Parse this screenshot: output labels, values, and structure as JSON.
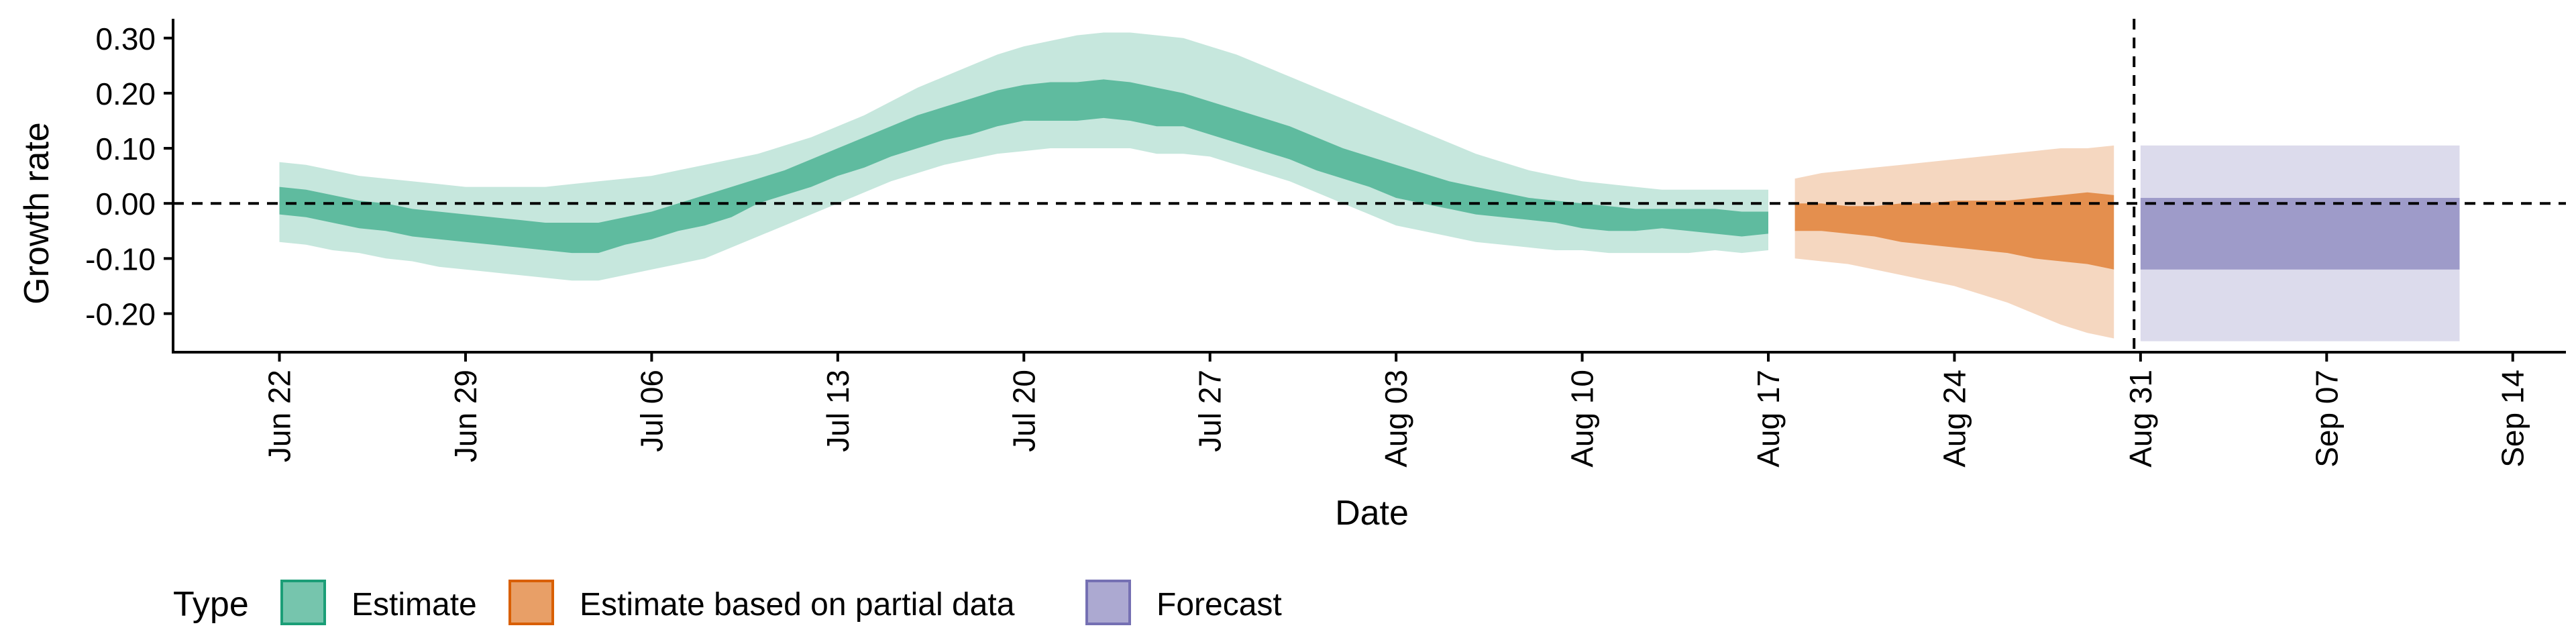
{
  "chart_data": {
    "type": "area",
    "xlabel": "Date",
    "ylabel": "Growth rate",
    "ylim": [
      -0.27,
      0.335
    ],
    "x_ticks": [
      "2020-06-22",
      "2020-06-29",
      "2020-07-06",
      "2020-07-13",
      "2020-07-20",
      "2020-07-27",
      "2020-08-03",
      "2020-08-10",
      "2020-08-17",
      "2020-08-24",
      "2020-08-31",
      "2020-09-07",
      "2020-09-14"
    ],
    "x_tick_labels": [
      "Jun 22",
      "Jun 29",
      "Jul 06",
      "Jul 13",
      "Jul 20",
      "Jul 27",
      "Aug 03",
      "Aug 10",
      "Aug 17",
      "Aug 24",
      "Aug 31",
      "Sep 07",
      "Sep 14"
    ],
    "xlim": [
      "2020-06-18",
      "2020-09-16"
    ],
    "y_ticks": [
      -0.2,
      -0.1,
      0.0,
      0.1,
      0.2,
      0.3
    ],
    "y_tick_labels": [
      "-0.20",
      "-0.10",
      "0.00",
      "0.10",
      "0.20",
      "0.30"
    ],
    "grid": false,
    "hlines": [
      0
    ],
    "vlines": [
      "2020-08-30"
    ],
    "legend": {
      "title": "Type",
      "position": "bottom",
      "entries": [
        "Estimate",
        "Estimate based on partial data",
        "Forecast"
      ]
    },
    "colors": {
      "Estimate": "#1b9e77",
      "Estimate based on partial data": "#d95f02",
      "Forecast": "#7570b3"
    },
    "series": [
      {
        "name": "Estimate",
        "x": [
          "2020-06-22",
          "2020-06-23",
          "2020-06-24",
          "2020-06-25",
          "2020-06-26",
          "2020-06-27",
          "2020-06-28",
          "2020-06-29",
          "2020-06-30",
          "2020-07-01",
          "2020-07-02",
          "2020-07-03",
          "2020-07-04",
          "2020-07-05",
          "2020-07-06",
          "2020-07-07",
          "2020-07-08",
          "2020-07-09",
          "2020-07-10",
          "2020-07-11",
          "2020-07-12",
          "2020-07-13",
          "2020-07-14",
          "2020-07-15",
          "2020-07-16",
          "2020-07-17",
          "2020-07-18",
          "2020-07-19",
          "2020-07-20",
          "2020-07-21",
          "2020-07-22",
          "2020-07-23",
          "2020-07-24",
          "2020-07-25",
          "2020-07-26",
          "2020-07-27",
          "2020-07-28",
          "2020-07-29",
          "2020-07-30",
          "2020-07-31",
          "2020-08-01",
          "2020-08-02",
          "2020-08-03",
          "2020-08-04",
          "2020-08-05",
          "2020-08-06",
          "2020-08-07",
          "2020-08-08",
          "2020-08-09",
          "2020-08-10",
          "2020-08-11",
          "2020-08-12",
          "2020-08-13",
          "2020-08-14",
          "2020-08-15",
          "2020-08-16",
          "2020-08-17"
        ],
        "lower90": [
          -0.07,
          -0.075,
          -0.085,
          -0.09,
          -0.1,
          -0.105,
          -0.115,
          -0.12,
          -0.125,
          -0.13,
          -0.135,
          -0.14,
          -0.14,
          -0.13,
          -0.12,
          -0.11,
          -0.1,
          -0.08,
          -0.06,
          -0.04,
          -0.02,
          0.0,
          0.02,
          0.04,
          0.055,
          0.07,
          0.08,
          0.09,
          0.095,
          0.1,
          0.1,
          0.1,
          0.1,
          0.09,
          0.09,
          0.085,
          0.07,
          0.055,
          0.04,
          0.02,
          0.0,
          -0.02,
          -0.04,
          -0.05,
          -0.06,
          -0.07,
          -0.075,
          -0.08,
          -0.085,
          -0.085,
          -0.09,
          -0.09,
          -0.09,
          -0.09,
          -0.085,
          -0.09,
          -0.085
        ],
        "upper90": [
          0.075,
          0.07,
          0.06,
          0.05,
          0.045,
          0.04,
          0.035,
          0.03,
          0.03,
          0.03,
          0.03,
          0.035,
          0.04,
          0.045,
          0.05,
          0.06,
          0.07,
          0.08,
          0.09,
          0.105,
          0.12,
          0.14,
          0.16,
          0.185,
          0.21,
          0.23,
          0.25,
          0.27,
          0.285,
          0.295,
          0.305,
          0.31,
          0.31,
          0.305,
          0.3,
          0.285,
          0.27,
          0.25,
          0.23,
          0.21,
          0.19,
          0.17,
          0.15,
          0.13,
          0.11,
          0.09,
          0.075,
          0.06,
          0.05,
          0.04,
          0.035,
          0.03,
          0.025,
          0.025,
          0.025,
          0.025,
          0.025
        ],
        "lower50": [
          -0.02,
          -0.025,
          -0.035,
          -0.045,
          -0.05,
          -0.06,
          -0.065,
          -0.07,
          -0.075,
          -0.08,
          -0.085,
          -0.09,
          -0.09,
          -0.075,
          -0.065,
          -0.05,
          -0.04,
          -0.025,
          0.0,
          0.015,
          0.03,
          0.05,
          0.065,
          0.085,
          0.1,
          0.115,
          0.125,
          0.14,
          0.15,
          0.15,
          0.15,
          0.155,
          0.15,
          0.14,
          0.14,
          0.125,
          0.11,
          0.095,
          0.08,
          0.06,
          0.045,
          0.03,
          0.01,
          0.0,
          -0.01,
          -0.02,
          -0.025,
          -0.03,
          -0.035,
          -0.045,
          -0.05,
          -0.05,
          -0.045,
          -0.05,
          -0.055,
          -0.06,
          -0.055
        ],
        "upper50": [
          0.03,
          0.025,
          0.015,
          0.005,
          0.0,
          -0.01,
          -0.015,
          -0.02,
          -0.025,
          -0.03,
          -0.035,
          -0.035,
          -0.035,
          -0.025,
          -0.015,
          0.0,
          0.015,
          0.03,
          0.045,
          0.06,
          0.08,
          0.1,
          0.12,
          0.14,
          0.16,
          0.175,
          0.19,
          0.205,
          0.215,
          0.22,
          0.22,
          0.225,
          0.22,
          0.21,
          0.2,
          0.185,
          0.17,
          0.155,
          0.14,
          0.12,
          0.1,
          0.085,
          0.07,
          0.055,
          0.04,
          0.03,
          0.02,
          0.01,
          0.005,
          0.0,
          -0.005,
          -0.01,
          -0.01,
          -0.01,
          -0.01,
          -0.015,
          -0.015
        ]
      },
      {
        "name": "Estimate based on partial data",
        "x": [
          "2020-08-18",
          "2020-08-19",
          "2020-08-20",
          "2020-08-21",
          "2020-08-22",
          "2020-08-23",
          "2020-08-24",
          "2020-08-25",
          "2020-08-26",
          "2020-08-27",
          "2020-08-28",
          "2020-08-29",
          "2020-08-30"
        ],
        "lower90": [
          -0.1,
          -0.105,
          -0.11,
          -0.12,
          -0.13,
          -0.14,
          -0.15,
          -0.165,
          -0.18,
          -0.2,
          -0.22,
          -0.235,
          -0.245
        ],
        "upper90": [
          0.045,
          0.055,
          0.06,
          0.065,
          0.07,
          0.075,
          0.08,
          0.085,
          0.09,
          0.095,
          0.1,
          0.1,
          0.105
        ],
        "lower50": [
          -0.05,
          -0.05,
          -0.055,
          -0.06,
          -0.07,
          -0.075,
          -0.08,
          -0.085,
          -0.09,
          -0.1,
          -0.105,
          -0.11,
          -0.12
        ],
        "upper50": [
          0.0,
          0.0,
          -0.005,
          -0.005,
          0.0,
          0.0,
          0.005,
          0.005,
          0.005,
          0.01,
          0.015,
          0.02,
          0.015
        ]
      },
      {
        "name": "Forecast",
        "x": [
          "2020-08-31",
          "2020-09-12"
        ],
        "lower90": [
          -0.25,
          -0.25
        ],
        "upper90": [
          0.105,
          0.105
        ],
        "lower50": [
          -0.12,
          -0.12
        ],
        "upper50": [
          0.01,
          0.01
        ]
      }
    ]
  }
}
